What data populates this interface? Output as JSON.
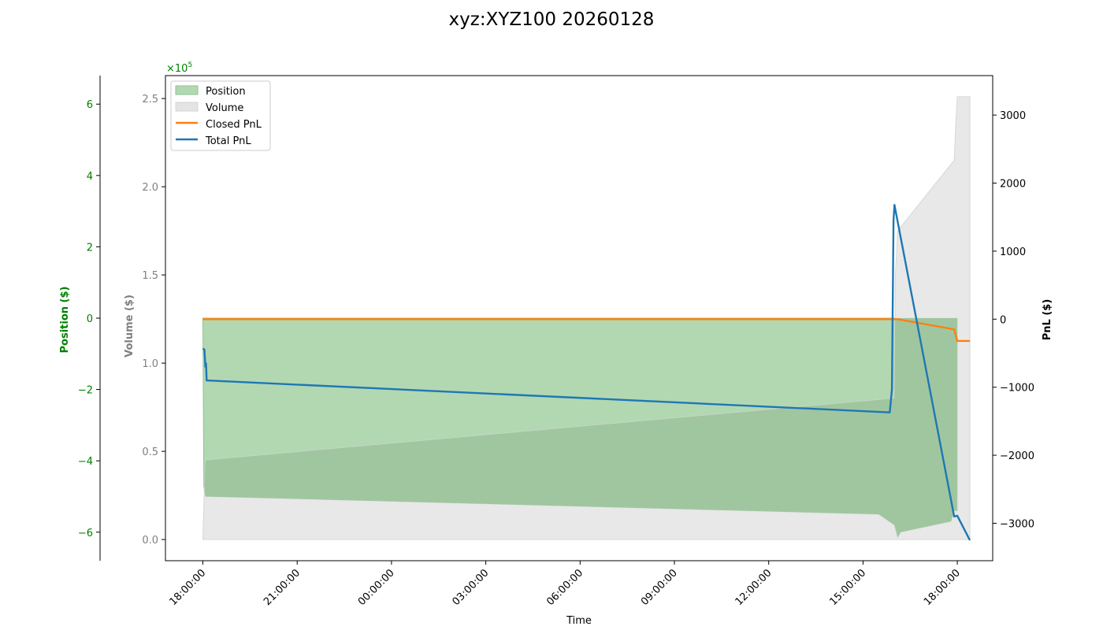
{
  "title": "xyz:XYZ100 20260128",
  "colors": {
    "position": "#008000",
    "position_fill": "#b2d8b2",
    "overlap_fill": "#a0c6a0",
    "volume_fill": "#e4e4e4",
    "volume_axis": "#808080",
    "closed_pnl": "#ff7f0e",
    "total_pnl": "#1f77b4",
    "axis": "#000000"
  },
  "chart_data": {
    "type": "area",
    "title": "xyz:XYZ100 20260128",
    "xlabel": "Time",
    "x_ticks": [
      "18:00:00",
      "21:00:00",
      "00:00:00",
      "03:00:00",
      "06:00:00",
      "09:00:00",
      "12:00:00",
      "15:00:00",
      "18:00:00"
    ],
    "axes": {
      "position": {
        "label": "Position ($)",
        "ylim": [
          -6.8,
          6.8
        ],
        "ticks": [
          6,
          4,
          2,
          0,
          -2,
          -4,
          -6
        ],
        "tick_labels": [
          "6",
          "4",
          "2",
          "0",
          "−2",
          "−4",
          "−6"
        ],
        "color": "#008000"
      },
      "volume": {
        "label": "Volume ($)",
        "ylim": [
          -0.12,
          2.63
        ],
        "ticks": [
          0.0,
          0.5,
          1.0,
          1.5,
          2.0,
          2.5
        ],
        "tick_labels": [
          "0.0",
          "0.5",
          "1.0",
          "1.5",
          "2.0",
          "2.5"
        ],
        "scale_label": "×10",
        "scale_exp": "5",
        "color": "#808080"
      },
      "pnl": {
        "label": "PnL ($)",
        "ylim": [
          -3550,
          3580
        ],
        "ticks": [
          3000,
          2000,
          1000,
          0,
          -1000,
          -2000,
          -3000
        ],
        "tick_labels": [
          "3000",
          "2000",
          "1000",
          "0",
          "−1000",
          "−2000",
          "−3000"
        ],
        "color": "#000000"
      }
    },
    "legend": {
      "placement": "top-left",
      "entries": [
        "Position",
        "Volume",
        "Closed PnL",
        "Total PnL"
      ]
    },
    "series": [
      {
        "name": "Position",
        "axis": "position",
        "kind": "area",
        "points": [
          [
            0,
            0
          ],
          [
            0.03,
            -4.7
          ],
          [
            0.08,
            -5.0
          ],
          [
            21.5,
            -5.5
          ],
          [
            22.0,
            -5.8
          ],
          [
            22.1,
            -6.15
          ],
          [
            22.2,
            -6.0
          ],
          [
            23.8,
            -5.7
          ],
          [
            23.9,
            -5.4
          ],
          [
            24.0,
            -5.4
          ]
        ]
      },
      {
        "name": "Volume",
        "axis": "volume",
        "kind": "area",
        "points": [
          [
            0,
            0.0
          ],
          [
            0.05,
            0.3
          ],
          [
            0.08,
            0.45
          ],
          [
            22.0,
            0.8
          ],
          [
            22.03,
            1.5
          ],
          [
            22.1,
            1.75
          ],
          [
            23.9,
            2.15
          ],
          [
            23.95,
            2.35
          ],
          [
            24.0,
            2.51
          ],
          [
            24.4,
            2.51
          ],
          [
            24.4,
            0.0
          ]
        ]
      },
      {
        "name": "Closed PnL",
        "axis": "pnl",
        "kind": "line",
        "points": [
          [
            0,
            0
          ],
          [
            22.05,
            0
          ],
          [
            22.1,
            0
          ],
          [
            23.9,
            -150
          ],
          [
            24.0,
            -320
          ],
          [
            24.4,
            -320
          ]
        ]
      },
      {
        "name": "Total PnL",
        "axis": "pnl",
        "kind": "line",
        "points": [
          [
            0,
            -430
          ],
          [
            0.05,
            -450
          ],
          [
            0.08,
            -700
          ],
          [
            0.1,
            -650
          ],
          [
            0.12,
            -900
          ],
          [
            21.85,
            -1370
          ],
          [
            21.92,
            -1030
          ],
          [
            21.97,
            1450
          ],
          [
            22.0,
            1680
          ],
          [
            23.9,
            -2900
          ],
          [
            24.0,
            -2890
          ],
          [
            24.4,
            -3250
          ]
        ]
      }
    ]
  }
}
